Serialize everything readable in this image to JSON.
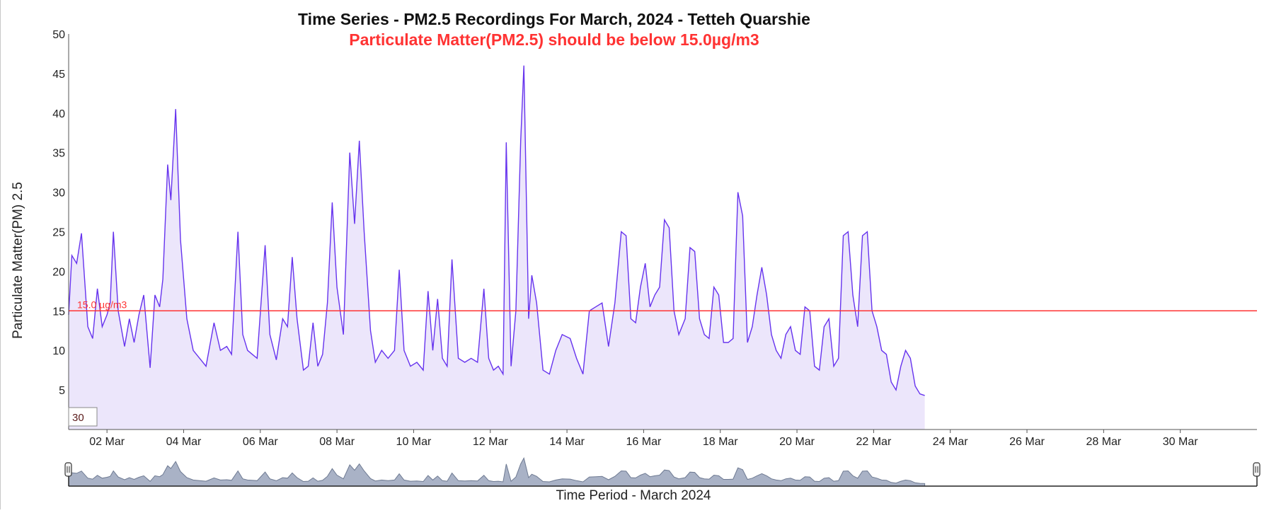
{
  "chart_data": {
    "type": "area",
    "title": "Time Series - PM2.5 Recordings For March, 2024 - Tetteh Quarshie",
    "subtitle": "Particulate Matter(PM2.5) should be below 15.0µg/m3",
    "ylabel": "Particulate Matter(PM) 2.5",
    "xlabel": "Time Period - March 2024",
    "ylim": [
      0,
      50
    ],
    "yticks": [
      5,
      10,
      15,
      20,
      25,
      30,
      35,
      40,
      45,
      50
    ],
    "xlim": [
      "2024-03-01",
      "2024-04-01"
    ],
    "xticks": [
      {
        "date": "2024-03-02",
        "label": "02 Mar"
      },
      {
        "date": "2024-03-04",
        "label": "04 Mar"
      },
      {
        "date": "2024-03-06",
        "label": "06 Mar"
      },
      {
        "date": "2024-03-08",
        "label": "08 Mar"
      },
      {
        "date": "2024-03-10",
        "label": "10 Mar"
      },
      {
        "date": "2024-03-12",
        "label": "12 Mar"
      },
      {
        "date": "2024-03-14",
        "label": "14 Mar"
      },
      {
        "date": "2024-03-16",
        "label": "16 Mar"
      },
      {
        "date": "2024-03-18",
        "label": "18 Mar"
      },
      {
        "date": "2024-03-20",
        "label": "20 Mar"
      },
      {
        "date": "2024-03-22",
        "label": "22 Mar"
      },
      {
        "date": "2024-03-24",
        "label": "24 Mar"
      },
      {
        "date": "2024-03-26",
        "label": "26 Mar"
      },
      {
        "date": "2024-03-28",
        "label": "28 Mar"
      },
      {
        "date": "2024-03-30",
        "label": "30 Mar"
      }
    ],
    "threshold": {
      "value": 15.0,
      "label": "15.0 µg/m3",
      "color": "#ff3333"
    },
    "series": [
      {
        "line_color": "#6633ee",
        "fill_color": "#ece6fb",
        "points": [
          [
            "2024-03-01 00:00",
            14.5
          ],
          [
            "2024-03-01 02:00",
            22.0
          ],
          [
            "2024-03-01 05:00",
            21.0
          ],
          [
            "2024-03-01 08:00",
            24.8
          ],
          [
            "2024-03-01 12:00",
            13.0
          ],
          [
            "2024-03-01 15:00",
            11.5
          ],
          [
            "2024-03-01 18:00",
            17.8
          ],
          [
            "2024-03-01 21:00",
            13.0
          ],
          [
            "2024-03-02 00:00",
            14.5
          ],
          [
            "2024-03-02 02:00",
            16.0
          ],
          [
            "2024-03-02 04:00",
            25.0
          ],
          [
            "2024-03-02 07:00",
            15.0
          ],
          [
            "2024-03-02 11:00",
            10.5
          ],
          [
            "2024-03-02 14:00",
            14.0
          ],
          [
            "2024-03-02 17:00",
            11.0
          ],
          [
            "2024-03-02 20:00",
            14.5
          ],
          [
            "2024-03-02 23:00",
            17.0
          ],
          [
            "2024-03-03 03:00",
            7.8
          ],
          [
            "2024-03-03 06:00",
            17.0
          ],
          [
            "2024-03-03 09:00",
            15.5
          ],
          [
            "2024-03-03 11:00",
            19.0
          ],
          [
            "2024-03-03 14:00",
            33.5
          ],
          [
            "2024-03-03 16:00",
            29.0
          ],
          [
            "2024-03-03 19:00",
            40.5
          ],
          [
            "2024-03-03 22:00",
            24.0
          ],
          [
            "2024-03-04 02:00",
            14.0
          ],
          [
            "2024-03-04 06:00",
            10.0
          ],
          [
            "2024-03-04 10:00",
            9.0
          ],
          [
            "2024-03-04 14:00",
            8.0
          ],
          [
            "2024-03-04 19:00",
            13.5
          ],
          [
            "2024-03-04 23:00",
            10.0
          ],
          [
            "2024-03-05 03:00",
            10.5
          ],
          [
            "2024-03-05 06:00",
            9.5
          ],
          [
            "2024-03-05 10:00",
            25.0
          ],
          [
            "2024-03-05 13:00",
            12.0
          ],
          [
            "2024-03-05 16:00",
            10.0
          ],
          [
            "2024-03-05 19:00",
            9.5
          ],
          [
            "2024-03-05 22:00",
            9.0
          ],
          [
            "2024-03-06 03:00",
            23.3
          ],
          [
            "2024-03-06 06:00",
            12.0
          ],
          [
            "2024-03-06 10:00",
            8.8
          ],
          [
            "2024-03-06 14:00",
            14.0
          ],
          [
            "2024-03-06 17:00",
            13.0
          ],
          [
            "2024-03-06 20:00",
            21.8
          ],
          [
            "2024-03-06 23:00",
            14.0
          ],
          [
            "2024-03-07 03:00",
            7.5
          ],
          [
            "2024-03-07 06:00",
            8.0
          ],
          [
            "2024-03-07 09:00",
            13.5
          ],
          [
            "2024-03-07 12:00",
            8.0
          ],
          [
            "2024-03-07 15:00",
            9.5
          ],
          [
            "2024-03-07 18:00",
            16.0
          ],
          [
            "2024-03-07 21:00",
            28.7
          ],
          [
            "2024-03-08 00:00",
            18.0
          ],
          [
            "2024-03-08 04:00",
            12.0
          ],
          [
            "2024-03-08 08:00",
            35.0
          ],
          [
            "2024-03-08 11:00",
            26.0
          ],
          [
            "2024-03-08 14:00",
            36.5
          ],
          [
            "2024-03-08 17:00",
            25.0
          ],
          [
            "2024-03-08 21:00",
            12.5
          ],
          [
            "2024-03-09 00:00",
            8.5
          ],
          [
            "2024-03-09 04:00",
            10.0
          ],
          [
            "2024-03-09 08:00",
            9.0
          ],
          [
            "2024-03-09 12:00",
            10.0
          ],
          [
            "2024-03-09 15:00",
            20.2
          ],
          [
            "2024-03-09 18:00",
            10.0
          ],
          [
            "2024-03-09 22:00",
            8.0
          ],
          [
            "2024-03-10 02:00",
            8.5
          ],
          [
            "2024-03-10 06:00",
            7.5
          ],
          [
            "2024-03-10 09:00",
            17.5
          ],
          [
            "2024-03-10 12:00",
            10.0
          ],
          [
            "2024-03-10 15:00",
            16.5
          ],
          [
            "2024-03-10 18:00",
            9.0
          ],
          [
            "2024-03-10 21:00",
            8.0
          ],
          [
            "2024-03-11 00:00",
            21.5
          ],
          [
            "2024-03-11 04:00",
            9.0
          ],
          [
            "2024-03-11 08:00",
            8.5
          ],
          [
            "2024-03-11 12:00",
            9.0
          ],
          [
            "2024-03-11 16:00",
            8.5
          ],
          [
            "2024-03-11 20:00",
            17.8
          ],
          [
            "2024-03-11 23:00",
            9.0
          ],
          [
            "2024-03-12 02:00",
            7.5
          ],
          [
            "2024-03-12 05:00",
            8.0
          ],
          [
            "2024-03-12 08:00",
            7.0
          ],
          [
            "2024-03-12 10:00",
            36.3
          ],
          [
            "2024-03-12 13:00",
            8.0
          ],
          [
            "2024-03-12 16:00",
            15.0
          ],
          [
            "2024-03-12 19:00",
            36.5
          ],
          [
            "2024-03-12 21:00",
            46.0
          ],
          [
            "2024-03-13 00:00",
            14.0
          ],
          [
            "2024-03-13 02:00",
            19.5
          ],
          [
            "2024-03-13 05:00",
            16.0
          ],
          [
            "2024-03-13 09:00",
            7.5
          ],
          [
            "2024-03-13 13:00",
            7.0
          ],
          [
            "2024-03-13 17:00",
            10.0
          ],
          [
            "2024-03-13 21:00",
            12.0
          ],
          [
            "2024-03-14 02:00",
            11.5
          ],
          [
            "2024-03-14 06:00",
            9.0
          ],
          [
            "2024-03-14 10:00",
            7.0
          ],
          [
            "2024-03-14 14:00",
            15.0
          ],
          [
            "2024-03-14 18:00",
            15.5
          ],
          [
            "2024-03-14 22:00",
            16.0
          ],
          [
            "2024-03-15 02:00",
            10.5
          ],
          [
            "2024-03-15 06:00",
            16.0
          ],
          [
            "2024-03-15 10:00",
            25.0
          ],
          [
            "2024-03-15 13:00",
            24.5
          ],
          [
            "2024-03-15 16:00",
            14.0
          ],
          [
            "2024-03-15 19:00",
            13.5
          ],
          [
            "2024-03-15 22:00",
            18.0
          ],
          [
            "2024-03-16 01:00",
            21.0
          ],
          [
            "2024-03-16 04:00",
            15.5
          ],
          [
            "2024-03-16 07:00",
            17.0
          ],
          [
            "2024-03-16 10:00",
            18.0
          ],
          [
            "2024-03-16 13:00",
            26.5
          ],
          [
            "2024-03-16 16:00",
            25.5
          ],
          [
            "2024-03-16 19:00",
            15.0
          ],
          [
            "2024-03-16 22:00",
            12.0
          ],
          [
            "2024-03-17 02:00",
            14.0
          ],
          [
            "2024-03-17 05:00",
            23.0
          ],
          [
            "2024-03-17 08:00",
            22.5
          ],
          [
            "2024-03-17 11:00",
            14.0
          ],
          [
            "2024-03-17 14:00",
            12.0
          ],
          [
            "2024-03-17 17:00",
            11.5
          ],
          [
            "2024-03-17 20:00",
            18.0
          ],
          [
            "2024-03-17 23:00",
            17.0
          ],
          [
            "2024-03-18 02:00",
            11.0
          ],
          [
            "2024-03-18 05:00",
            11.0
          ],
          [
            "2024-03-18 08:00",
            11.5
          ],
          [
            "2024-03-18 11:00",
            30.0
          ],
          [
            "2024-03-18 14:00",
            27.0
          ],
          [
            "2024-03-18 17:00",
            11.0
          ],
          [
            "2024-03-18 20:00",
            13.0
          ],
          [
            "2024-03-18 23:00",
            17.0
          ],
          [
            "2024-03-19 02:00",
            20.5
          ],
          [
            "2024-03-19 05:00",
            17.0
          ],
          [
            "2024-03-19 08:00",
            12.0
          ],
          [
            "2024-03-19 11:00",
            10.0
          ],
          [
            "2024-03-19 14:00",
            9.0
          ],
          [
            "2024-03-19 17:00",
            12.0
          ],
          [
            "2024-03-19 20:00",
            13.0
          ],
          [
            "2024-03-19 23:00",
            10.0
          ],
          [
            "2024-03-20 02:00",
            9.5
          ],
          [
            "2024-03-20 05:00",
            15.5
          ],
          [
            "2024-03-20 08:00",
            15.0
          ],
          [
            "2024-03-20 11:00",
            8.0
          ],
          [
            "2024-03-20 14:00",
            7.5
          ],
          [
            "2024-03-20 17:00",
            13.0
          ],
          [
            "2024-03-20 20:00",
            14.0
          ],
          [
            "2024-03-20 23:00",
            8.0
          ],
          [
            "2024-03-21 02:00",
            9.0
          ],
          [
            "2024-03-21 05:00",
            24.5
          ],
          [
            "2024-03-21 08:00",
            25.0
          ],
          [
            "2024-03-21 11:00",
            17.0
          ],
          [
            "2024-03-21 14:00",
            13.0
          ],
          [
            "2024-03-21 17:00",
            24.5
          ],
          [
            "2024-03-21 20:00",
            25.0
          ],
          [
            "2024-03-21 23:00",
            15.0
          ],
          [
            "2024-03-22 02:00",
            13.0
          ],
          [
            "2024-03-22 05:00",
            10.0
          ],
          [
            "2024-03-22 08:00",
            9.5
          ],
          [
            "2024-03-22 11:00",
            6.0
          ],
          [
            "2024-03-22 14:00",
            5.0
          ],
          [
            "2024-03-22 17:00",
            8.0
          ],
          [
            "2024-03-22 20:00",
            10.0
          ],
          [
            "2024-03-22 23:00",
            9.0
          ],
          [
            "2024-03-23 02:00",
            5.5
          ],
          [
            "2024-03-23 05:00",
            4.5
          ],
          [
            "2024-03-23 08:00",
            4.3
          ]
        ]
      }
    ],
    "navigator": {
      "label": "Time Period - March 2024",
      "fill_color": "#a9b2c6",
      "line_color": "#6e7a92"
    },
    "smoothing_input": {
      "value": "30"
    }
  }
}
